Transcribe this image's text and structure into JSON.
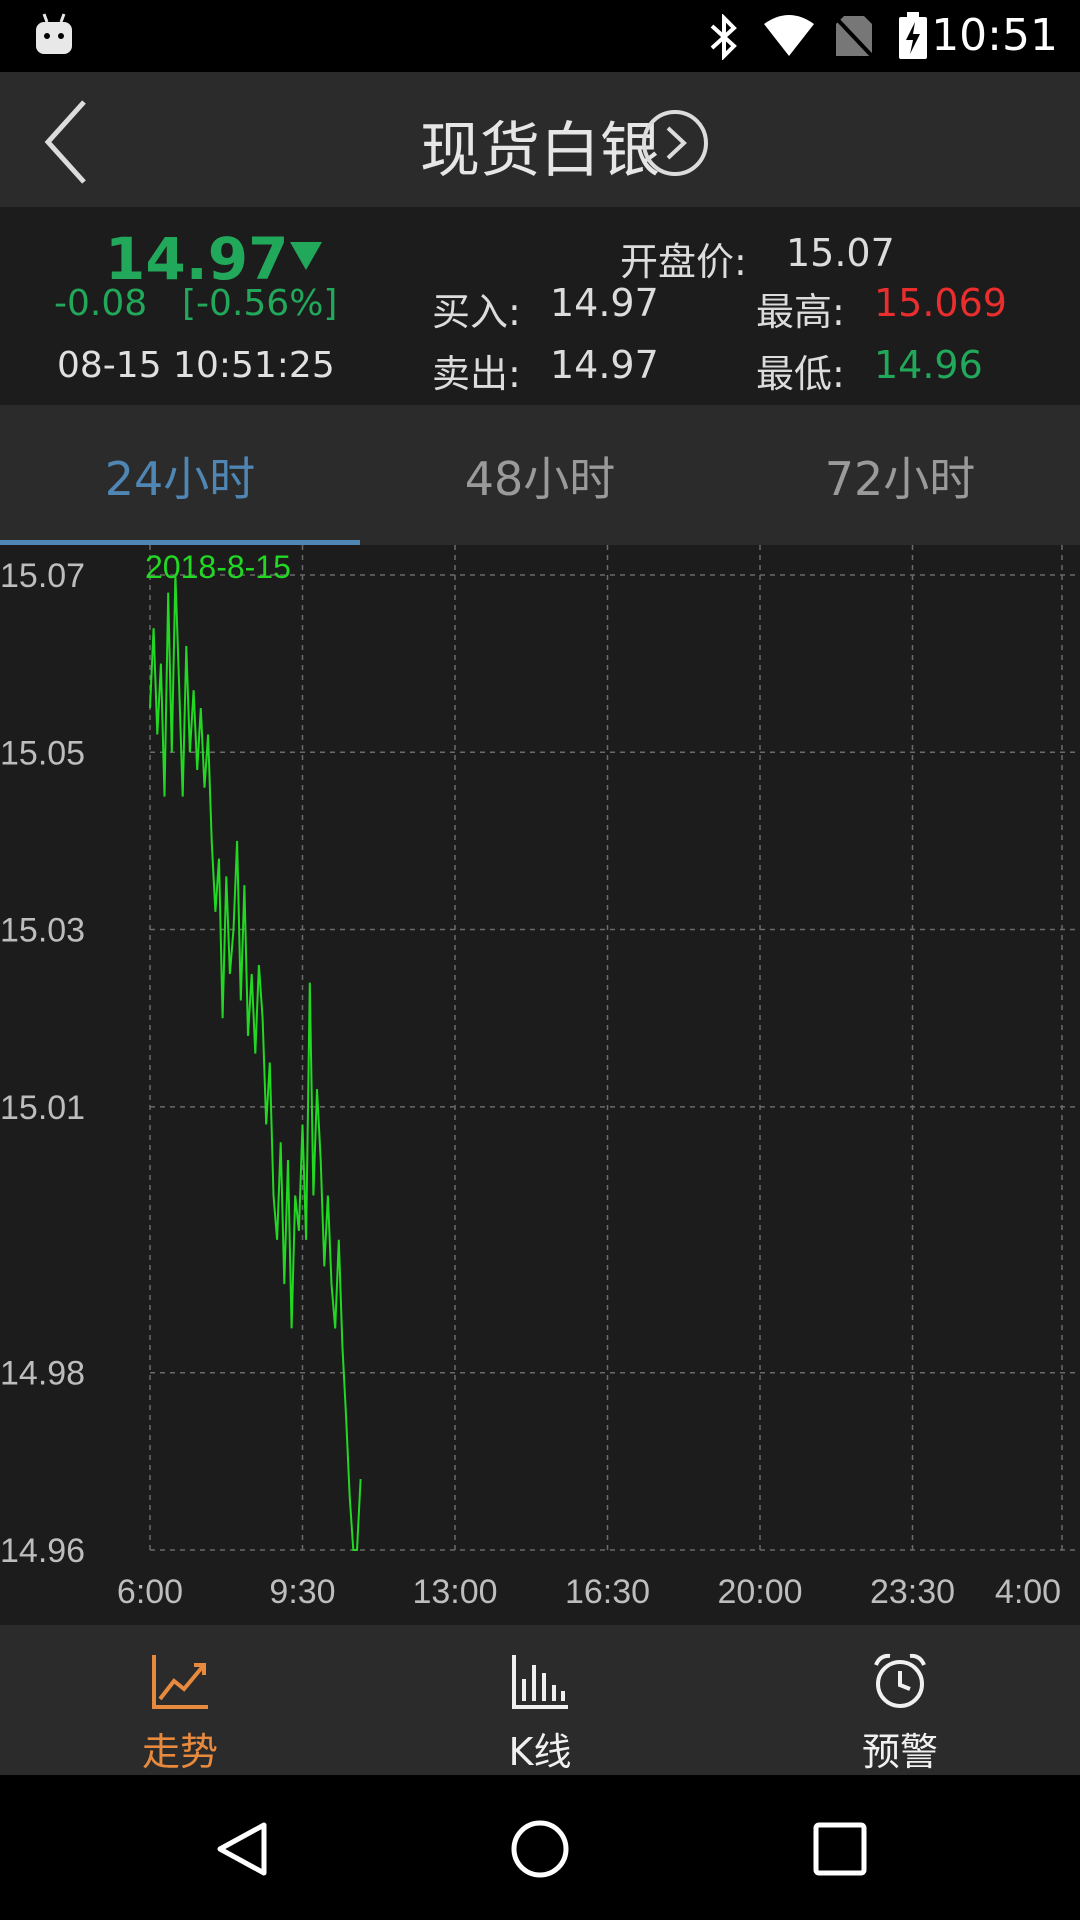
{
  "status_bar": {
    "time": "10:51"
  },
  "header": {
    "title": "现货白银"
  },
  "quote": {
    "price": "14.97",
    "change": "-0.08",
    "change_pct": "[-0.56%]",
    "datetime": "08-15 10:51:25",
    "open_label": "开盘价:",
    "open_value": "15.07",
    "buy_label": "买入:",
    "buy_value": "14.97",
    "sell_label": "卖出:",
    "sell_value": "14.97",
    "high_label": "最高:",
    "high_value": "15.069",
    "low_label": "最低:",
    "low_value": "14.96"
  },
  "tabs": [
    {
      "label": "24小时",
      "active": true
    },
    {
      "label": "48小时",
      "active": false
    },
    {
      "label": "72小时",
      "active": false
    }
  ],
  "chart_data": {
    "type": "line",
    "annotation": "2018-8-15",
    "y_ticks": [
      "15.07",
      "15.05",
      "15.03",
      "15.01",
      "14.98",
      "14.96"
    ],
    "x_ticks": [
      "6:00",
      "9:30",
      "13:00",
      "16:30",
      "20:00",
      "23:30",
      "4:00"
    ],
    "ylim": [
      14.96,
      15.07
    ],
    "line_color": "#22d822",
    "grid": true,
    "series": [
      {
        "x": [
          "6:00",
          "6:05",
          "6:10",
          "6:15",
          "6:20",
          "6:25",
          "6:30",
          "6:35",
          "6:40",
          "6:45",
          "6:50",
          "6:55",
          "7:00",
          "7:05",
          "7:10",
          "7:15",
          "7:20",
          "7:25",
          "7:30",
          "7:35",
          "7:40",
          "7:45",
          "7:50",
          "7:55",
          "8:00",
          "8:05",
          "8:10",
          "8:15",
          "8:20",
          "8:25",
          "8:30",
          "8:35",
          "8:40",
          "8:45",
          "8:50",
          "8:55",
          "9:00",
          "9:05",
          "9:10",
          "9:15",
          "9:20",
          "9:25",
          "9:30",
          "9:35",
          "9:40",
          "9:45",
          "9:50",
          "9:55",
          "10:00",
          "10:05",
          "10:10",
          "10:15",
          "10:20",
          "10:25",
          "10:30",
          "10:35",
          "10:40",
          "10:45",
          "10:50"
        ],
        "values": [
          15.055,
          15.064,
          15.052,
          15.06,
          15.045,
          15.068,
          15.05,
          15.07,
          15.058,
          15.045,
          15.062,
          15.05,
          15.057,
          15.048,
          15.055,
          15.046,
          15.052,
          15.04,
          15.032,
          15.038,
          15.02,
          15.036,
          15.025,
          15.03,
          15.04,
          15.022,
          15.035,
          15.018,
          15.025,
          15.016,
          15.026,
          15.02,
          15.008,
          15.015,
          15.0,
          14.995,
          15.006,
          14.99,
          15.004,
          14.985,
          15.0,
          14.996,
          15.008,
          14.995,
          15.024,
          15.0,
          15.012,
          15.004,
          14.992,
          15.0,
          14.99,
          14.985,
          14.995,
          14.983,
          14.975,
          14.966,
          14.96,
          14.96,
          14.968
        ]
      }
    ]
  },
  "bottom_nav": [
    {
      "label": "走势",
      "icon": "trend-icon",
      "active": true
    },
    {
      "label": "K线",
      "icon": "kline-icon",
      "active": false
    },
    {
      "label": "预警",
      "icon": "alarm-icon",
      "active": false
    }
  ],
  "colors": {
    "up": "#ea2e2e",
    "down": "#22a85a",
    "accent": "#4f86b4",
    "nav_active": "#e78a3e"
  }
}
